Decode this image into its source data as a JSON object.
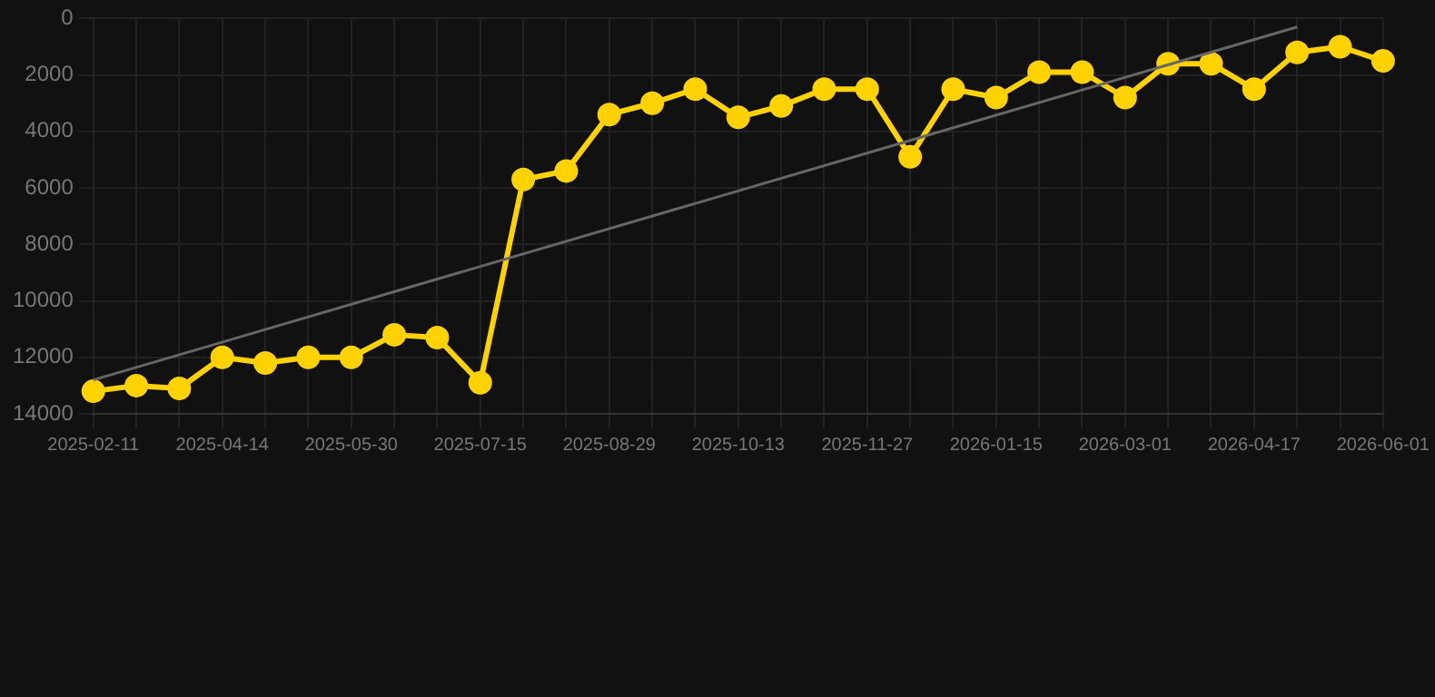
{
  "chart_data": {
    "type": "line",
    "categories": [
      "2025-02-11",
      null,
      null,
      "2025-04-14",
      null,
      null,
      "2025-05-30",
      null,
      null,
      "2025-07-15",
      null,
      null,
      "2025-08-29",
      null,
      null,
      "2025-10-13",
      null,
      null,
      "2025-11-27",
      null,
      null,
      "2026-01-15",
      null,
      null,
      "2026-03-01",
      null,
      null,
      "2026-04-17",
      null,
      null,
      "2026-06-01"
    ],
    "series": [
      {
        "color": "#ffd200",
        "values": [
          13200,
          13000,
          13100,
          12000,
          12200,
          12000,
          12000,
          11200,
          11300,
          12900,
          5700,
          5400,
          3400,
          3000,
          2500,
          3500,
          3100,
          2500,
          2500,
          4900,
          2500,
          2800,
          1900,
          1900,
          2800,
          1600,
          1600,
          2500,
          1200,
          1000,
          1500
        ]
      },
      {
        "type": "line",
        "color": "#666666",
        "marker": "none",
        "values": [
          12800,
          null,
          null,
          null,
          null,
          null,
          null,
          null,
          null,
          null,
          null,
          null,
          null,
          null,
          null,
          null,
          null,
          null,
          null,
          null,
          null,
          null,
          null,
          null,
          null,
          null,
          null,
          null,
          300,
          null,
          null
        ]
      }
    ],
    "ylim": [
      14000,
      0
    ],
    "yticks": [
      0,
      2000,
      4000,
      6000,
      8000,
      10000,
      12000,
      14000
    ],
    "grid": true,
    "legend": false,
    "marker": "circle"
  }
}
